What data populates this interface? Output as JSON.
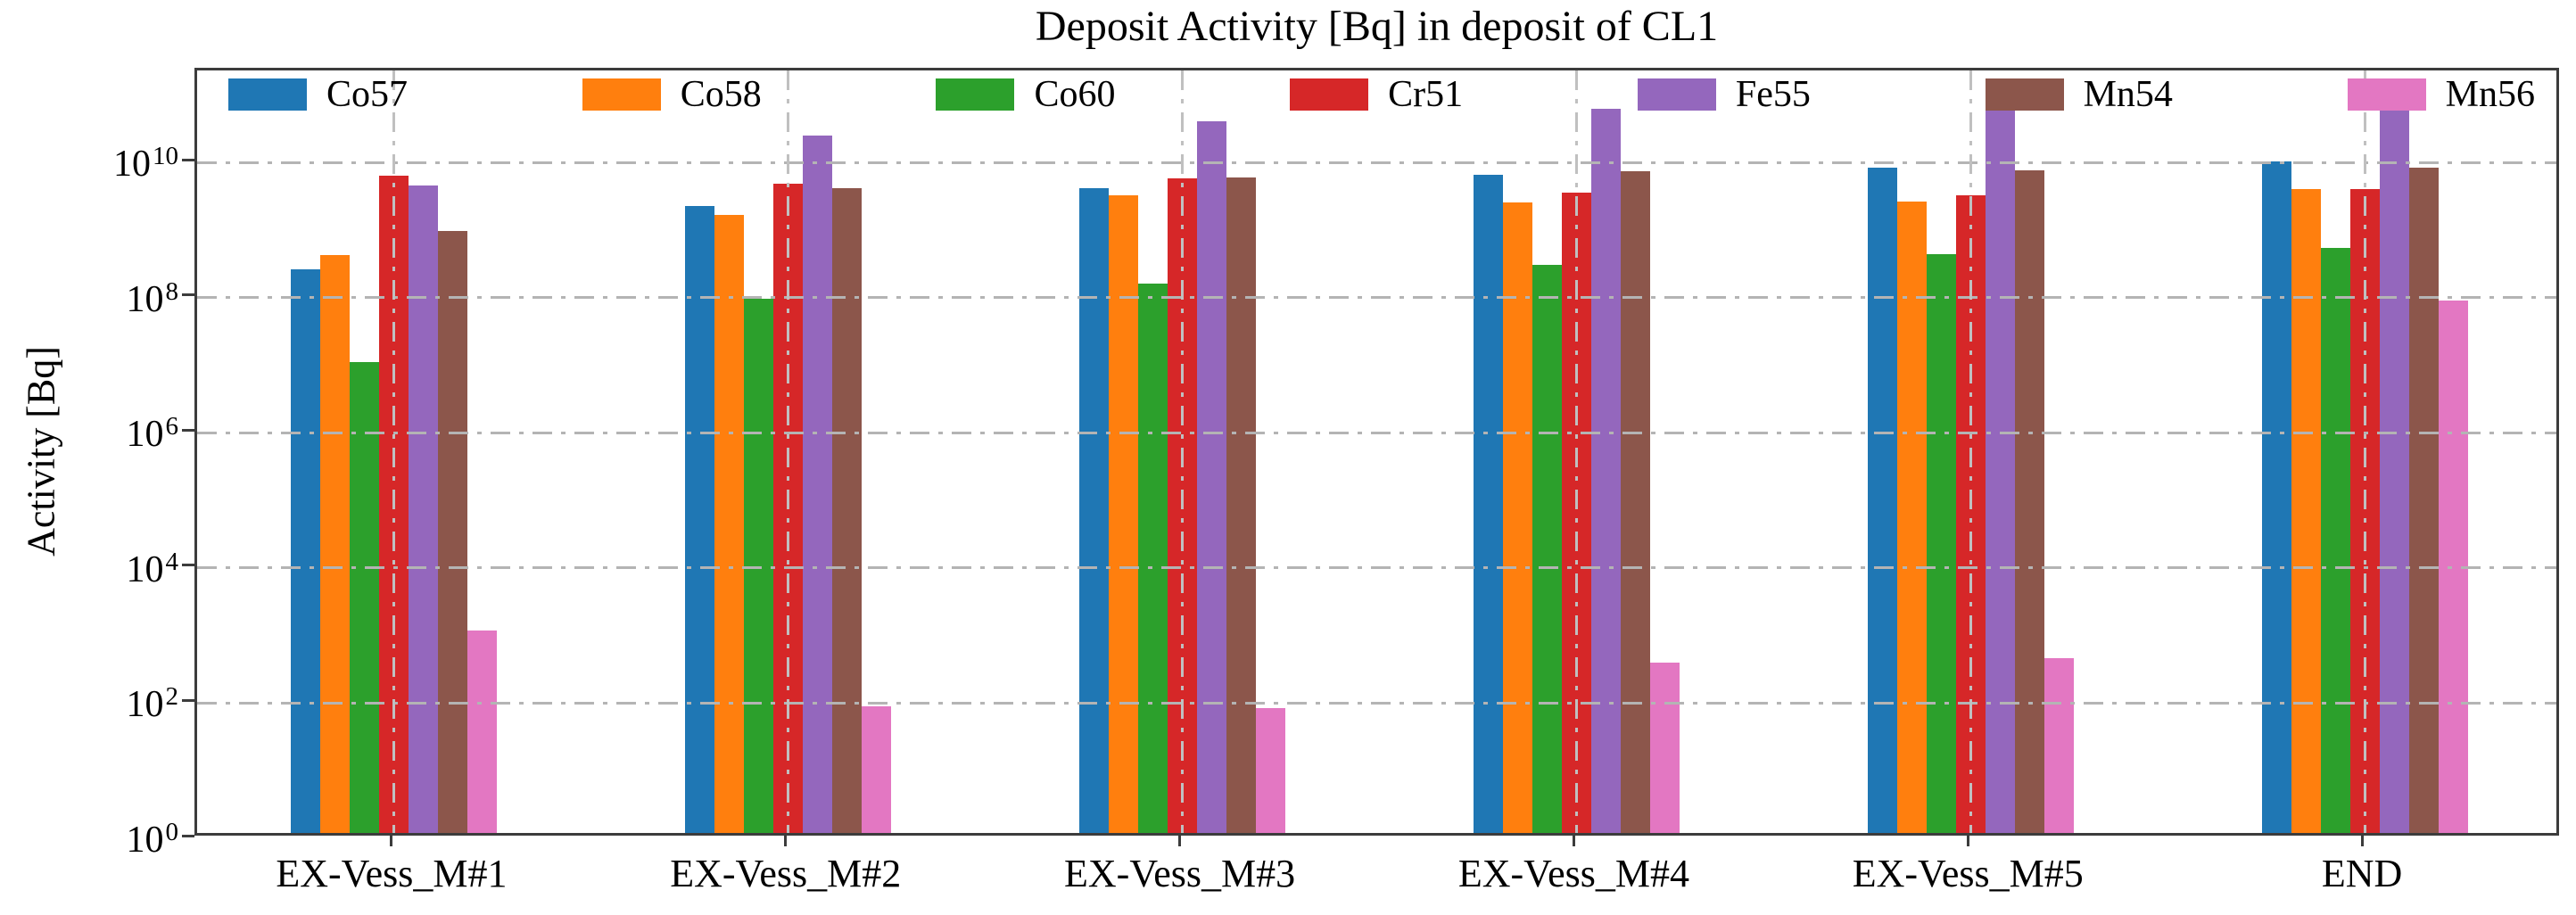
{
  "title": "Deposit Activity [Bq] in deposit of CL1",
  "y_axis": {
    "label": "Activity [Bq]",
    "scale": "log",
    "tick_base": "10",
    "tick_exponents": [
      "0",
      "2",
      "4",
      "6",
      "8",
      "10"
    ]
  },
  "x_axis": {
    "categories": [
      "EX-Vess_M#1",
      "EX-Vess_M#2",
      "EX-Vess_M#3",
      "EX-Vess_M#4",
      "EX-Vess_M#5",
      "END"
    ]
  },
  "legend": {
    "entries": [
      {
        "label": "Co57",
        "color": "#1f77b4"
      },
      {
        "label": "Co58",
        "color": "#ff7f0e"
      },
      {
        "label": "Co60",
        "color": "#2ca02c"
      },
      {
        "label": "Cr51",
        "color": "#d62728"
      },
      {
        "label": "Fe55",
        "color": "#9467bd"
      },
      {
        "label": "Mn54",
        "color": "#8c564b"
      },
      {
        "label": "Mn56",
        "color": "#e377c2"
      }
    ]
  },
  "chart_data": {
    "type": "bar",
    "scale": "log-y",
    "title": "Deposit Activity [Bq] in deposit of CL1",
    "xlabel": "",
    "ylabel": "Activity [Bq]",
    "ylim": [
      1,
      230000000000.0
    ],
    "grid": "dash-dot, both axes, gray, drawn over bars",
    "legend_position": "single row inside top of axes",
    "categories": [
      "EX-Vess_M#1",
      "EX-Vess_M#2",
      "EX-Vess_M#3",
      "EX-Vess_M#4",
      "EX-Vess_M#5",
      "END"
    ],
    "series": [
      {
        "name": "Co57",
        "color": "#1f77b4",
        "values": [
          220000000.0,
          1900000000.0,
          3500000000.0,
          5500000000.0,
          7000000000.0,
          8500000000.0
        ]
      },
      {
        "name": "Co58",
        "color": "#ff7f0e",
        "values": [
          350000000.0,
          1400000000.0,
          2700000000.0,
          2100000000.0,
          2200000000.0,
          3400000000.0
        ]
      },
      {
        "name": "Co60",
        "color": "#2ca02c",
        "values": [
          9300000.0,
          80000000.0,
          135000000.0,
          250000000.0,
          370000000.0,
          450000000.0
        ]
      },
      {
        "name": "Cr51",
        "color": "#d62728",
        "values": [
          5300000000.0,
          4000000000.0,
          4800000000.0,
          3000000000.0,
          2700000000.0,
          3400000000.0
        ]
      },
      {
        "name": "Fe55",
        "color": "#9467bd",
        "values": [
          3800000000.0,
          21000000000.0,
          34000000000.0,
          51000000000.0,
          62000000000.0,
          70000000000.0
        ]
      },
      {
        "name": "Mn54",
        "color": "#8c564b",
        "values": [
          800000000.0,
          3500000000.0,
          5000000000.0,
          6200000000.0,
          6300000000.0,
          7000000000.0
        ]
      },
      {
        "name": "Mn56",
        "color": "#e377c2",
        "values": [
          1000.0,
          75,
          70,
          330,
          390,
          75000000.0
        ]
      }
    ]
  }
}
